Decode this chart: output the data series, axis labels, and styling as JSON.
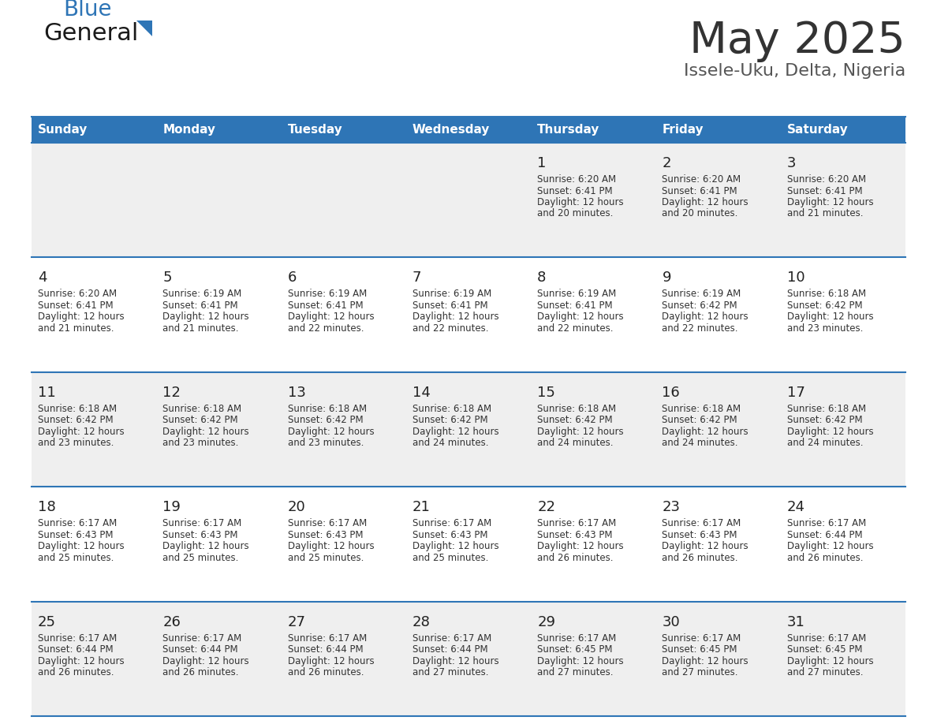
{
  "title": "May 2025",
  "subtitle": "Issele-Uku, Delta, Nigeria",
  "header_bg": "#2E75B6",
  "header_text_color": "#FFFFFF",
  "weekdays": [
    "Sunday",
    "Monday",
    "Tuesday",
    "Wednesday",
    "Thursday",
    "Friday",
    "Saturday"
  ],
  "row_bg_odd": "#EFEFEF",
  "row_bg_even": "#FFFFFF",
  "cell_border_color": "#2E75B6",
  "title_color": "#333333",
  "subtitle_color": "#555555",
  "day_number_color": "#222222",
  "info_color": "#333333",
  "logo_general_color": "#1a1a1a",
  "logo_blue_color": "#2E75B6",
  "logo_triangle_color": "#2E75B6",
  "calendar": [
    [
      {
        "day": "",
        "sunrise": "",
        "sunset": "",
        "daylight": ""
      },
      {
        "day": "",
        "sunrise": "",
        "sunset": "",
        "daylight": ""
      },
      {
        "day": "",
        "sunrise": "",
        "sunset": "",
        "daylight": ""
      },
      {
        "day": "",
        "sunrise": "",
        "sunset": "",
        "daylight": ""
      },
      {
        "day": "1",
        "sunrise": "6:20 AM",
        "sunset": "6:41 PM",
        "daylight": "12 hours and 20 minutes."
      },
      {
        "day": "2",
        "sunrise": "6:20 AM",
        "sunset": "6:41 PM",
        "daylight": "12 hours and 20 minutes."
      },
      {
        "day": "3",
        "sunrise": "6:20 AM",
        "sunset": "6:41 PM",
        "daylight": "12 hours and 21 minutes."
      }
    ],
    [
      {
        "day": "4",
        "sunrise": "6:20 AM",
        "sunset": "6:41 PM",
        "daylight": "12 hours and 21 minutes."
      },
      {
        "day": "5",
        "sunrise": "6:19 AM",
        "sunset": "6:41 PM",
        "daylight": "12 hours and 21 minutes."
      },
      {
        "day": "6",
        "sunrise": "6:19 AM",
        "sunset": "6:41 PM",
        "daylight": "12 hours and 22 minutes."
      },
      {
        "day": "7",
        "sunrise": "6:19 AM",
        "sunset": "6:41 PM",
        "daylight": "12 hours and 22 minutes."
      },
      {
        "day": "8",
        "sunrise": "6:19 AM",
        "sunset": "6:41 PM",
        "daylight": "12 hours and 22 minutes."
      },
      {
        "day": "9",
        "sunrise": "6:19 AM",
        "sunset": "6:42 PM",
        "daylight": "12 hours and 22 minutes."
      },
      {
        "day": "10",
        "sunrise": "6:18 AM",
        "sunset": "6:42 PM",
        "daylight": "12 hours and 23 minutes."
      }
    ],
    [
      {
        "day": "11",
        "sunrise": "6:18 AM",
        "sunset": "6:42 PM",
        "daylight": "12 hours and 23 minutes."
      },
      {
        "day": "12",
        "sunrise": "6:18 AM",
        "sunset": "6:42 PM",
        "daylight": "12 hours and 23 minutes."
      },
      {
        "day": "13",
        "sunrise": "6:18 AM",
        "sunset": "6:42 PM",
        "daylight": "12 hours and 23 minutes."
      },
      {
        "day": "14",
        "sunrise": "6:18 AM",
        "sunset": "6:42 PM",
        "daylight": "12 hours and 24 minutes."
      },
      {
        "day": "15",
        "sunrise": "6:18 AM",
        "sunset": "6:42 PM",
        "daylight": "12 hours and 24 minutes."
      },
      {
        "day": "16",
        "sunrise": "6:18 AM",
        "sunset": "6:42 PM",
        "daylight": "12 hours and 24 minutes."
      },
      {
        "day": "17",
        "sunrise": "6:18 AM",
        "sunset": "6:42 PM",
        "daylight": "12 hours and 24 minutes."
      }
    ],
    [
      {
        "day": "18",
        "sunrise": "6:17 AM",
        "sunset": "6:43 PM",
        "daylight": "12 hours and 25 minutes."
      },
      {
        "day": "19",
        "sunrise": "6:17 AM",
        "sunset": "6:43 PM",
        "daylight": "12 hours and 25 minutes."
      },
      {
        "day": "20",
        "sunrise": "6:17 AM",
        "sunset": "6:43 PM",
        "daylight": "12 hours and 25 minutes."
      },
      {
        "day": "21",
        "sunrise": "6:17 AM",
        "sunset": "6:43 PM",
        "daylight": "12 hours and 25 minutes."
      },
      {
        "day": "22",
        "sunrise": "6:17 AM",
        "sunset": "6:43 PM",
        "daylight": "12 hours and 26 minutes."
      },
      {
        "day": "23",
        "sunrise": "6:17 AM",
        "sunset": "6:43 PM",
        "daylight": "12 hours and 26 minutes."
      },
      {
        "day": "24",
        "sunrise": "6:17 AM",
        "sunset": "6:44 PM",
        "daylight": "12 hours and 26 minutes."
      }
    ],
    [
      {
        "day": "25",
        "sunrise": "6:17 AM",
        "sunset": "6:44 PM",
        "daylight": "12 hours and 26 minutes."
      },
      {
        "day": "26",
        "sunrise": "6:17 AM",
        "sunset": "6:44 PM",
        "daylight": "12 hours and 26 minutes."
      },
      {
        "day": "27",
        "sunrise": "6:17 AM",
        "sunset": "6:44 PM",
        "daylight": "12 hours and 26 minutes."
      },
      {
        "day": "28",
        "sunrise": "6:17 AM",
        "sunset": "6:44 PM",
        "daylight": "12 hours and 27 minutes."
      },
      {
        "day": "29",
        "sunrise": "6:17 AM",
        "sunset": "6:45 PM",
        "daylight": "12 hours and 27 minutes."
      },
      {
        "day": "30",
        "sunrise": "6:17 AM",
        "sunset": "6:45 PM",
        "daylight": "12 hours and 27 minutes."
      },
      {
        "day": "31",
        "sunrise": "6:17 AM",
        "sunset": "6:45 PM",
        "daylight": "12 hours and 27 minutes."
      }
    ]
  ]
}
